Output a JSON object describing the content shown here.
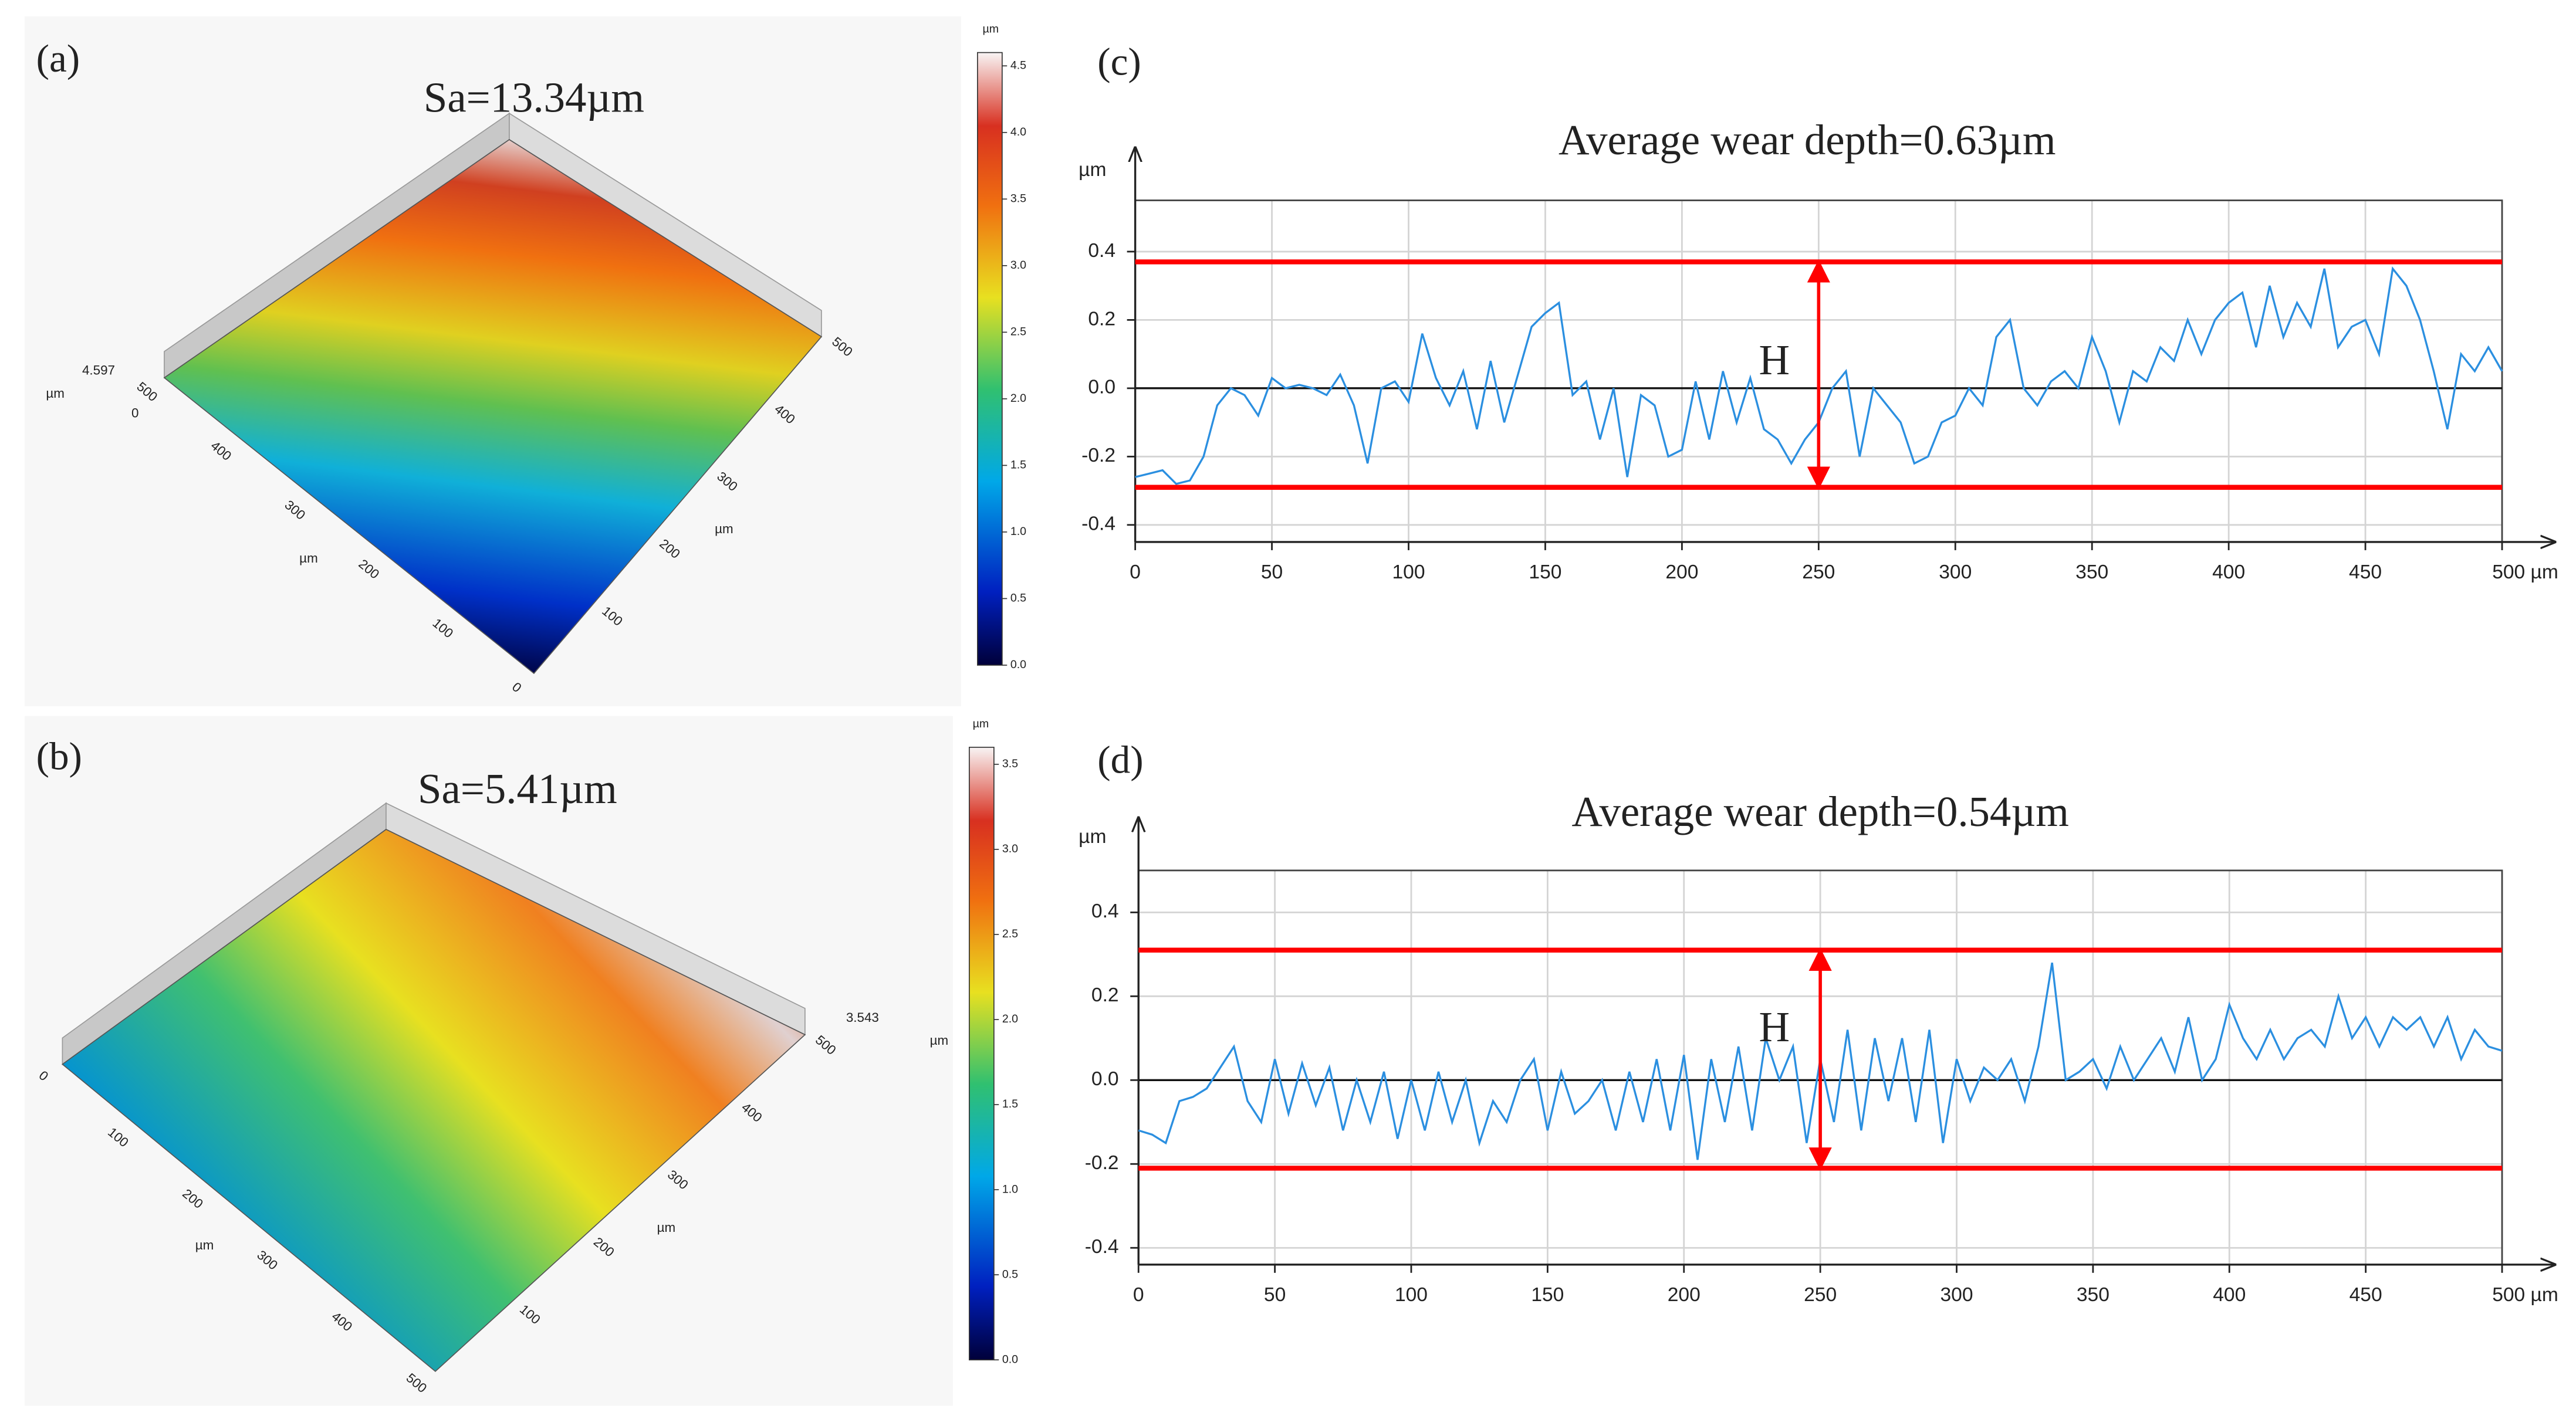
{
  "chart_data": [
    {
      "type": "surface3d",
      "panel": "(a)",
      "title": "Sa=13.34µm",
      "z_max_label": 4.597,
      "z_min_label": 0,
      "z_unit": "µm",
      "x_unit": "µm",
      "y_unit": "µm",
      "xticks": [
        100,
        200,
        300,
        400,
        500
      ],
      "yticks": [
        0,
        100,
        200,
        300,
        400,
        500
      ],
      "colorbar_unit": "µm",
      "clim": [
        0,
        4.6
      ],
      "cticks": [
        {
          "value": 0,
          "label": "0.0"
        },
        0.5,
        {
          "value": 1,
          "label": "1.0"
        },
        1.5,
        {
          "value": 2,
          "label": "2.0"
        },
        2.5,
        {
          "value": 3,
          "label": "3.0"
        },
        3.5,
        {
          "value": 4,
          "label": "4.0"
        },
        4.5
      ]
    },
    {
      "type": "surface3d",
      "panel": "(b)",
      "title": "Sa=5.41µm",
      "z_max_label": 3.543,
      "z_unit": "µm",
      "x_unit": "µm",
      "y_unit": "µm",
      "xticks": [
        0,
        100,
        200,
        300,
        400,
        500
      ],
      "yticks": [
        100,
        200,
        300,
        400,
        500
      ],
      "colorbar_unit": "µm",
      "clim": [
        0,
        3.6
      ],
      "cticks": [
        {
          "value": 0,
          "label": "0.0"
        },
        0.5,
        {
          "value": 1,
          "label": "1.0"
        },
        1.5,
        {
          "value": 2,
          "label": "2.0"
        },
        2.5,
        {
          "value": 3,
          "label": "3.0"
        },
        3.5
      ]
    },
    {
      "type": "line",
      "panel": "(c)",
      "title": "Average wear depth=0.63µm",
      "ylabel": "µm",
      "xlim": [
        0,
        500
      ],
      "ylim": [
        -0.45,
        0.55
      ],
      "xticks": [
        0,
        50,
        100,
        150,
        200,
        250,
        300,
        350,
        400,
        450,
        {
          "value": 500,
          "label": "500 µm"
        }
      ],
      "yticks": [
        -0.4,
        -0.2,
        {
          "value": 0,
          "label": "0.0"
        },
        0.2,
        0.4
      ],
      "grid": true,
      "hlines": [
        0.37,
        -0.29
      ],
      "hline_color": "#ff0000",
      "arrow_x": 250,
      "arrow_label": "H",
      "x": [
        0,
        5,
        10,
        15,
        20,
        25,
        30,
        35,
        40,
        45,
        50,
        55,
        60,
        65,
        70,
        75,
        80,
        85,
        90,
        95,
        100,
        105,
        110,
        115,
        120,
        125,
        130,
        135,
        140,
        145,
        150,
        155,
        160,
        165,
        170,
        175,
        180,
        185,
        190,
        195,
        200,
        205,
        210,
        215,
        220,
        225,
        230,
        235,
        240,
        245,
        250,
        255,
        260,
        265,
        270,
        275,
        280,
        285,
        290,
        295,
        300,
        305,
        310,
        315,
        320,
        325,
        330,
        335,
        340,
        345,
        350,
        355,
        360,
        365,
        370,
        375,
        380,
        385,
        390,
        395,
        400,
        405,
        410,
        415,
        420,
        425,
        430,
        435,
        440,
        445,
        450,
        455,
        460,
        465,
        470,
        475,
        480,
        485,
        490,
        495,
        500
      ],
      "series": [
        {
          "color": "#2b8fe0",
          "values": [
            -0.26,
            -0.25,
            -0.24,
            -0.28,
            -0.27,
            -0.2,
            -0.05,
            0.0,
            -0.02,
            -0.08,
            0.03,
            0.0,
            0.01,
            0.0,
            -0.02,
            0.04,
            -0.05,
            -0.22,
            0.0,
            0.02,
            -0.04,
            0.16,
            0.03,
            -0.05,
            0.05,
            -0.12,
            0.08,
            -0.1,
            0.04,
            0.18,
            0.22,
            0.25,
            -0.02,
            0.02,
            -0.15,
            0.0,
            -0.26,
            -0.02,
            -0.05,
            -0.2,
            -0.18,
            0.02,
            -0.15,
            0.05,
            -0.1,
            0.03,
            -0.12,
            -0.15,
            -0.22,
            -0.15,
            -0.1,
            0.0,
            0.05,
            -0.2,
            0.0,
            -0.05,
            -0.1,
            -0.22,
            -0.2,
            -0.1,
            -0.08,
            0.0,
            -0.05,
            0.15,
            0.2,
            0.0,
            -0.05,
            0.02,
            0.05,
            0.0,
            0.15,
            0.05,
            -0.1,
            0.05,
            0.02,
            0.12,
            0.08,
            0.2,
            0.1,
            0.2,
            0.25,
            0.28,
            0.12,
            0.3,
            0.15,
            0.25,
            0.18,
            0.35,
            0.12,
            0.18,
            0.2,
            0.1,
            0.35,
            0.3,
            0.2,
            0.05,
            -0.12,
            0.1,
            0.05,
            0.12,
            0.05
          ]
        }
      ]
    },
    {
      "type": "line",
      "panel": "(d)",
      "title": "Average wear depth=0.54µm",
      "ylabel": "µm",
      "xlim": [
        0,
        500
      ],
      "ylim": [
        -0.44,
        0.5
      ],
      "xticks": [
        0,
        50,
        100,
        150,
        200,
        250,
        300,
        350,
        400,
        450,
        {
          "value": 500,
          "label": "500 µm"
        }
      ],
      "yticks": [
        -0.4,
        -0.2,
        {
          "value": 0,
          "label": "0.0"
        },
        0.2,
        0.4
      ],
      "grid": true,
      "hlines": [
        0.31,
        -0.21
      ],
      "hline_color": "#ff0000",
      "arrow_x": 250,
      "arrow_label": "H",
      "x": [
        0,
        5,
        10,
        15,
        20,
        25,
        30,
        35,
        40,
        45,
        50,
        55,
        60,
        65,
        70,
        75,
        80,
        85,
        90,
        95,
        100,
        105,
        110,
        115,
        120,
        125,
        130,
        135,
        140,
        145,
        150,
        155,
        160,
        165,
        170,
        175,
        180,
        185,
        190,
        195,
        200,
        205,
        210,
        215,
        220,
        225,
        230,
        235,
        240,
        245,
        250,
        255,
        260,
        265,
        270,
        275,
        280,
        285,
        290,
        295,
        300,
        305,
        310,
        315,
        320,
        325,
        330,
        335,
        340,
        345,
        350,
        355,
        360,
        365,
        370,
        375,
        380,
        385,
        390,
        395,
        400,
        405,
        410,
        415,
        420,
        425,
        430,
        435,
        440,
        445,
        450,
        455,
        460,
        465,
        470,
        475,
        480,
        485,
        490,
        495,
        500
      ],
      "series": [
        {
          "color": "#2b8fe0",
          "values": [
            -0.12,
            -0.13,
            -0.15,
            -0.05,
            -0.04,
            -0.02,
            0.03,
            0.08,
            -0.05,
            -0.1,
            0.05,
            -0.08,
            0.04,
            -0.06,
            0.03,
            -0.12,
            0.0,
            -0.1,
            0.02,
            -0.14,
            0.0,
            -0.12,
            0.02,
            -0.1,
            0.0,
            -0.15,
            -0.05,
            -0.1,
            0.0,
            0.05,
            -0.12,
            0.02,
            -0.08,
            -0.05,
            0.0,
            -0.12,
            0.02,
            -0.1,
            0.05,
            -0.12,
            0.06,
            -0.19,
            0.05,
            -0.1,
            0.08,
            -0.12,
            0.1,
            0.0,
            0.08,
            -0.15,
            0.05,
            -0.1,
            0.12,
            -0.12,
            0.1,
            -0.05,
            0.1,
            -0.1,
            0.12,
            -0.15,
            0.05,
            -0.05,
            0.03,
            0.0,
            0.05,
            -0.05,
            0.08,
            0.28,
            0.0,
            0.02,
            0.05,
            -0.02,
            0.08,
            0.0,
            0.05,
            0.1,
            0.02,
            0.15,
            0.0,
            0.05,
            0.18,
            0.1,
            0.05,
            0.12,
            0.05,
            0.1,
            0.12,
            0.08,
            0.2,
            0.1,
            0.15,
            0.08,
            0.15,
            0.12,
            0.15,
            0.08,
            0.15,
            0.05,
            0.12,
            0.08,
            0.07
          ]
        }
      ]
    }
  ]
}
